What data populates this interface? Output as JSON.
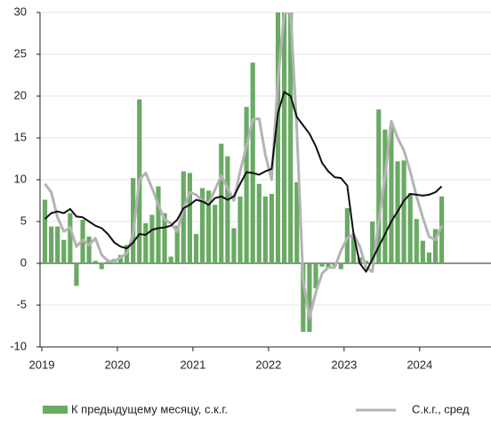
{
  "chart_data": {
    "type": "bar",
    "categories": [
      "2019",
      null,
      null,
      null,
      null,
      null,
      null,
      null,
      null,
      null,
      null,
      null,
      "2020",
      null,
      null,
      null,
      null,
      null,
      null,
      null,
      null,
      null,
      null,
      null,
      "2021",
      null,
      null,
      null,
      null,
      null,
      null,
      null,
      null,
      null,
      null,
      null,
      "2022",
      null,
      null,
      null,
      null,
      null,
      null,
      null,
      null,
      null,
      null,
      null,
      "2023",
      null,
      null,
      null,
      null,
      null,
      null,
      null,
      null,
      null,
      null,
      null,
      "2024",
      null,
      null,
      null
    ],
    "series": [
      {
        "name": "К предыдущему месяцу, с.к.г.",
        "color": "#6aaa64",
        "type": "bar",
        "values": [
          7.6,
          4.4,
          4.4,
          2.8,
          6.0,
          -2.7,
          5.2,
          3.2,
          0.3,
          -0.7,
          0.2,
          0.5,
          1.0,
          2.2,
          10.2,
          19.6,
          4.8,
          5.8,
          9.2,
          6.0,
          0.8,
          4.5,
          11.0,
          10.8,
          3.5,
          9.0,
          8.7,
          7.0,
          14.3,
          12.8,
          4.2,
          8.0,
          18.7,
          24.0,
          9.5,
          8.0,
          8.3,
          30,
          30,
          30,
          9.7,
          -8.2,
          -8.2,
          -3.0,
          -0.4,
          -0.6,
          -0.3,
          -0.7,
          6.6,
          3.4,
          0.7,
          0.3,
          5.0,
          18.4,
          16.0,
          16.4,
          12.2,
          12.3,
          8.4,
          5.3,
          2.7,
          1.3,
          4.1,
          8.0
        ]
      },
      {
        "name": "С.к.г., сред",
        "color": "#b4b4b4",
        "type": "line",
        "values": [
          9.5,
          8.5,
          5.5,
          3.8,
          4.3,
          2.0,
          2.8,
          2.2,
          3.0,
          1.0,
          0.3,
          0.2,
          0.7,
          1.2,
          3.5,
          10.0,
          10.8,
          9.0,
          7.0,
          5.2,
          4.8,
          3.8,
          6.5,
          8.5,
          8.2,
          7.5,
          7.2,
          8.8,
          10.5,
          9.0,
          7.5,
          11.0,
          14.0,
          17.2,
          17.3,
          13.0,
          10.0,
          22,
          30,
          30,
          16,
          -2,
          -6.5,
          -3.5,
          -1.2,
          -0.5,
          -0.5,
          1.5,
          3.0,
          3.5,
          2.0,
          -0.5,
          -1.0,
          5.0,
          10.5,
          17.0,
          15.0,
          13.5,
          11.0,
          8.0,
          5.5,
          3.2,
          2.8,
          4.5
        ]
      },
      {
        "color": "#111111",
        "type": "line",
        "values": [
          5.3,
          6.0,
          6.2,
          6.0,
          6.5,
          5.6,
          5.5,
          5.0,
          4.5,
          4.2,
          3.5,
          2.5,
          2.0,
          1.8,
          2.5,
          3.5,
          3.4,
          4.0,
          4.2,
          4.3,
          4.5,
          5.2,
          6.6,
          7.0,
          7.6,
          7.4,
          7.0,
          7.8,
          8.0,
          7.6,
          8.0,
          9.5,
          10.9,
          10.8,
          10.6,
          11.0,
          11.3,
          18.0,
          20.5,
          20.0,
          17.5,
          16.5,
          15.5,
          14.0,
          12.0,
          11.0,
          10.3,
          10.2,
          9.3,
          3.5,
          0,
          -1.0,
          0.5,
          2.0,
          3.5,
          5.0,
          6.2,
          7.5,
          8.3,
          8.2,
          8.1,
          8.2,
          8.5,
          9.2
        ]
      }
    ],
    "ylim": [
      -10,
      30
    ],
    "yticks": [
      -10,
      -5,
      0,
      5,
      10,
      15,
      20,
      25,
      30
    ],
    "grid": true
  }
}
